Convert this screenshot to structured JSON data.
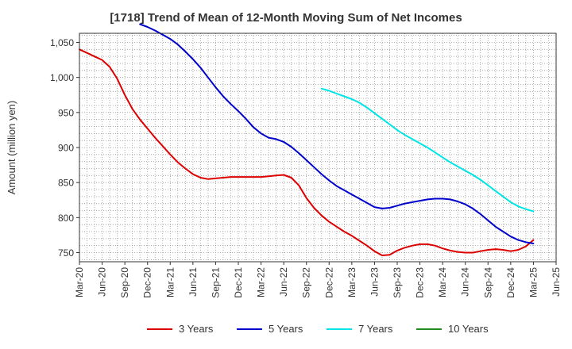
{
  "title": "[1718]  Trend of Mean of 12-Month Moving Sum of Net Incomes",
  "chart_data": {
    "type": "line",
    "title": "[1718]  Trend of Mean of 12-Month Moving Sum of Net Incomes",
    "ylabel": "Amount (million yen)",
    "xlabel": "",
    "ylim": [
      737,
      1063
    ],
    "yticks": [
      750,
      800,
      850,
      900,
      950,
      1000,
      1050
    ],
    "ytick_labels": [
      "750",
      "800",
      "850",
      "900",
      "950",
      "1,000",
      "1,050"
    ],
    "x_range": [
      "Mar-20",
      "Jun-25"
    ],
    "xtick_labels": [
      "Mar-20",
      "Jun-20",
      "Sep-20",
      "Dec-20",
      "Mar-21",
      "Jun-21",
      "Sep-21",
      "Dec-21",
      "Mar-22",
      "Jun-22",
      "Sep-22",
      "Dec-22",
      "Mar-23",
      "Jun-23",
      "Sep-23",
      "Dec-23",
      "Mar-24",
      "Jun-24",
      "Sep-24",
      "Dec-24",
      "Mar-25",
      "Jun-25"
    ],
    "grid": true,
    "legend_position": "bottom",
    "series": [
      {
        "name": "3 Years",
        "color": "#dd0000",
        "x": [
          "Mar-20",
          "Apr-20",
          "May-20",
          "Jun-20",
          "Jul-20",
          "Aug-20",
          "Sep-20",
          "Oct-20",
          "Nov-20",
          "Dec-20",
          "Jan-21",
          "Feb-21",
          "Mar-21",
          "Apr-21",
          "May-21",
          "Jun-21",
          "Jul-21",
          "Aug-21",
          "Sep-21",
          "Oct-21",
          "Nov-21",
          "Dec-21",
          "Jan-22",
          "Feb-22",
          "Mar-22",
          "Apr-22",
          "May-22",
          "Jun-22",
          "Jul-22",
          "Aug-22",
          "Sep-22",
          "Oct-22",
          "Nov-22",
          "Dec-22",
          "Jan-23",
          "Feb-23",
          "Mar-23",
          "Apr-23",
          "May-23",
          "Jun-23",
          "Jul-23",
          "Aug-23",
          "Sep-23",
          "Oct-23",
          "Nov-23",
          "Dec-23",
          "Jan-24",
          "Feb-24",
          "Mar-24",
          "Apr-24",
          "May-24",
          "Jun-24",
          "Jul-24",
          "Aug-24",
          "Sep-24",
          "Oct-24",
          "Nov-24",
          "Dec-24",
          "Jan-25",
          "Feb-25",
          "Mar-25"
        ],
        "values": [
          1040,
          1035,
          1030,
          1025,
          1015,
          998,
          975,
          955,
          940,
          927,
          914,
          902,
          890,
          879,
          870,
          862,
          857,
          855,
          856,
          857,
          858,
          858,
          858,
          858,
          858,
          859,
          860,
          861,
          857,
          846,
          828,
          814,
          803,
          794,
          787,
          780,
          774,
          767,
          760,
          752,
          746,
          747,
          753,
          757,
          760,
          762,
          762,
          760,
          756,
          753,
          751,
          750,
          750,
          752,
          754,
          755,
          754,
          752,
          754,
          759,
          768
        ]
      },
      {
        "name": "5 Years",
        "color": "#0000cc",
        "x": [
          "Nov-20",
          "Dec-20",
          "Jan-21",
          "Feb-21",
          "Mar-21",
          "Apr-21",
          "May-21",
          "Jun-21",
          "Jul-21",
          "Aug-21",
          "Sep-21",
          "Oct-21",
          "Nov-21",
          "Dec-21",
          "Jan-22",
          "Feb-22",
          "Mar-22",
          "Apr-22",
          "May-22",
          "Jun-22",
          "Jul-22",
          "Aug-22",
          "Sep-22",
          "Oct-22",
          "Nov-22",
          "Dec-22",
          "Jan-23",
          "Feb-23",
          "Mar-23",
          "Apr-23",
          "May-23",
          "Jun-23",
          "Jul-23",
          "Aug-23",
          "Sep-23",
          "Oct-23",
          "Nov-23",
          "Dec-23",
          "Jan-24",
          "Feb-24",
          "Mar-24",
          "Apr-24",
          "May-24",
          "Jun-24",
          "Jul-24",
          "Aug-24",
          "Sep-24",
          "Oct-24",
          "Nov-24",
          "Dec-24",
          "Jan-25",
          "Feb-25",
          "Mar-25"
        ],
        "values": [
          1076,
          1072,
          1067,
          1061,
          1055,
          1047,
          1037,
          1026,
          1014,
          1000,
          986,
          973,
          962,
          952,
          941,
          929,
          920,
          914,
          912,
          908,
          901,
          892,
          882,
          872,
          862,
          853,
          845,
          839,
          833,
          827,
          821,
          815,
          813,
          814,
          817,
          820,
          822,
          824,
          826,
          827,
          827,
          826,
          823,
          819,
          813,
          805,
          796,
          787,
          780,
          773,
          768,
          765,
          763
        ]
      },
      {
        "name": "7 Years",
        "color": "#00e5e5",
        "x": [
          "Nov-22",
          "Dec-22",
          "Jan-23",
          "Feb-23",
          "Mar-23",
          "Apr-23",
          "May-23",
          "Jun-23",
          "Jul-23",
          "Aug-23",
          "Sep-23",
          "Oct-23",
          "Nov-23",
          "Dec-23",
          "Jan-24",
          "Feb-24",
          "Mar-24",
          "Apr-24",
          "May-24",
          "Jun-24",
          "Jul-24",
          "Aug-24",
          "Sep-24",
          "Oct-24",
          "Nov-24",
          "Dec-24",
          "Jan-25",
          "Feb-25",
          "Mar-25"
        ],
        "values": [
          984,
          981,
          977,
          973,
          969,
          964,
          957,
          949,
          941,
          933,
          925,
          918,
          912,
          906,
          900,
          893,
          886,
          879,
          873,
          867,
          861,
          854,
          846,
          838,
          830,
          822,
          816,
          812,
          809
        ]
      },
      {
        "name": "10 Years",
        "color": "#228b22",
        "x": [],
        "values": []
      }
    ]
  }
}
